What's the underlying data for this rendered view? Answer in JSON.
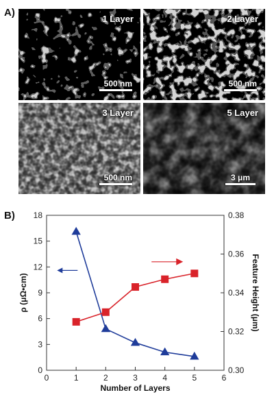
{
  "panel_a": {
    "label": "A)",
    "images": [
      {
        "name": "1 Layer",
        "scale": "500 nm"
      },
      {
        "name": "2 Layer",
        "scale": "500 nm"
      },
      {
        "name": "3 Layer",
        "scale": "500 nm"
      },
      {
        "name": "5 Layer",
        "scale": "3 μm"
      }
    ]
  },
  "panel_b": {
    "label": "B)"
  },
  "colors": {
    "resistivity": "#1f3c9a",
    "height": "#d9232a"
  },
  "chart_data": {
    "type": "line",
    "xlabel": "Number of Layers",
    "ylabel": "ρ (μΩ•cm)",
    "y2label": "Feature Height (μm)",
    "xlim": [
      0,
      6
    ],
    "ylim": [
      0,
      18
    ],
    "y2lim": [
      0.3,
      0.38
    ],
    "xticks": [
      "0",
      "1",
      "2",
      "3",
      "4",
      "5",
      "6"
    ],
    "yticks": [
      "0",
      "3",
      "6",
      "9",
      "12",
      "15",
      "18"
    ],
    "y2ticks": [
      "0.30",
      "0.32",
      "0.34",
      "0.36",
      "0.38"
    ],
    "grid": false,
    "series": [
      {
        "axis": "left",
        "marker": "triangle",
        "color": "#1f3c9a",
        "x": [
          1,
          2,
          3,
          4,
          5
        ],
        "y": [
          16.1,
          4.8,
          3.2,
          2.1,
          1.6
        ]
      },
      {
        "axis": "right",
        "marker": "square",
        "color": "#d9232a",
        "x": [
          1,
          2,
          3,
          4,
          5
        ],
        "y": [
          0.325,
          0.33,
          0.343,
          0.347,
          0.35
        ]
      }
    ]
  }
}
